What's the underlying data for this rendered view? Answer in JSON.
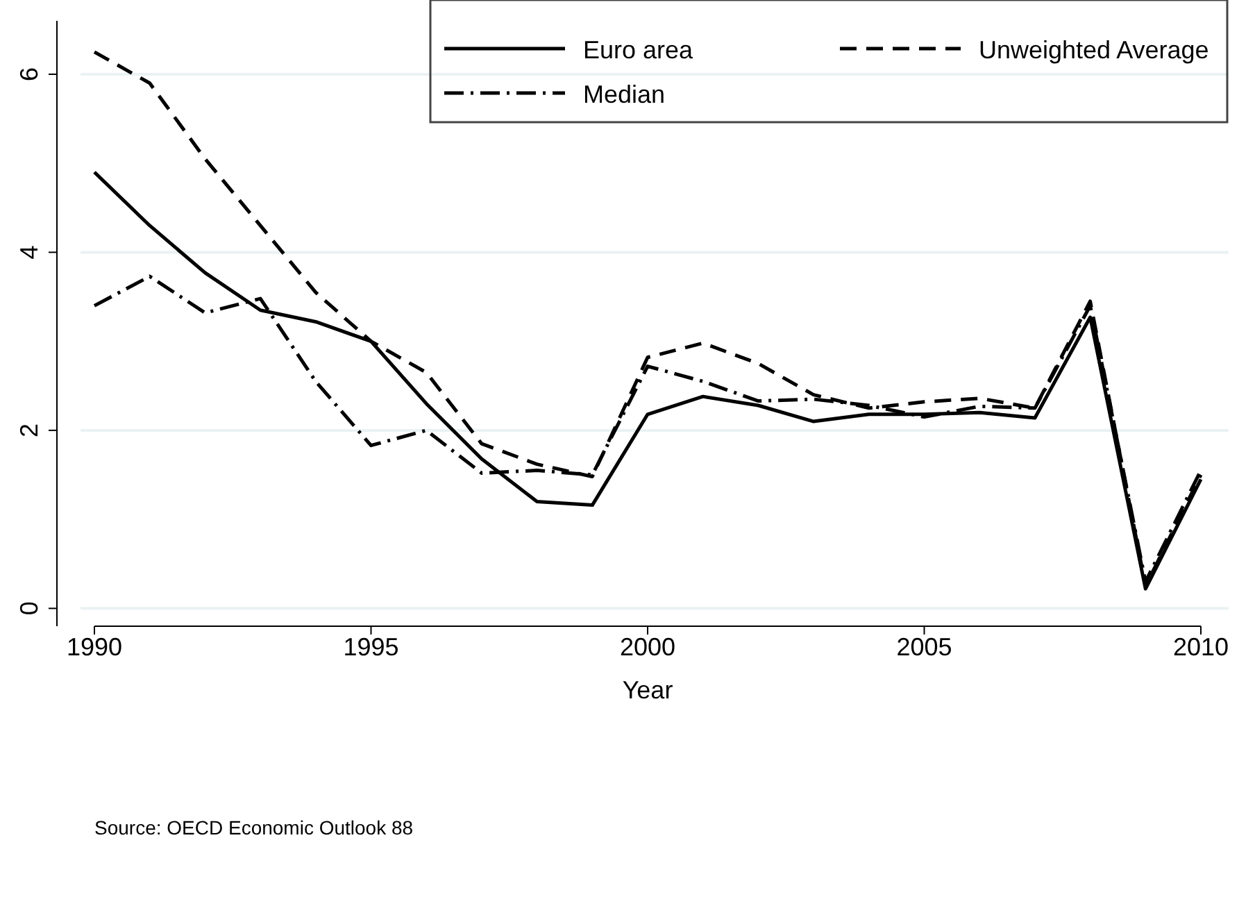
{
  "chart_data": {
    "type": "line",
    "xlabel": "Year",
    "annotations": [
      "Source: OECD Economic Outlook 88"
    ],
    "x": [
      1990,
      1991,
      1992,
      1993,
      1994,
      1995,
      1996,
      1997,
      1998,
      1999,
      2000,
      2001,
      2002,
      2003,
      2004,
      2005,
      2006,
      2007,
      2008,
      2009,
      2010
    ],
    "series": [
      {
        "name": "Euro area",
        "color": "#000000",
        "line_style": "solid",
        "values": [
          4.9,
          4.3,
          3.77,
          3.35,
          3.22,
          3.0,
          2.3,
          1.68,
          1.2,
          1.16,
          2.18,
          2.38,
          2.28,
          2.1,
          2.18,
          2.18,
          2.2,
          2.14,
          3.27,
          0.22,
          1.45
        ]
      },
      {
        "name": "Unweighted Average",
        "color": "#000000",
        "line_style": "dashed",
        "values": [
          6.25,
          5.9,
          5.05,
          4.3,
          3.55,
          3.0,
          2.65,
          1.85,
          1.62,
          1.48,
          2.82,
          2.98,
          2.75,
          2.4,
          2.25,
          2.32,
          2.36,
          2.25,
          3.45,
          0.25,
          1.5
        ]
      },
      {
        "name": "Median",
        "color": "#000000",
        "line_style": "dashdot",
        "values": [
          3.4,
          3.73,
          3.32,
          3.48,
          2.55,
          1.83,
          2.0,
          1.52,
          1.55,
          1.5,
          2.72,
          2.55,
          2.33,
          2.35,
          2.28,
          2.15,
          2.27,
          2.25,
          3.4,
          0.3,
          1.55
        ]
      }
    ],
    "xlim": [
      1990,
      2010
    ],
    "xticks": [
      1990,
      1995,
      2000,
      2005,
      2010
    ],
    "ylim": [
      -0.2,
      6.6
    ],
    "yticks": [
      0,
      2,
      4,
      6
    ],
    "grid": "y",
    "legend": "top right",
    "marker": "none"
  }
}
